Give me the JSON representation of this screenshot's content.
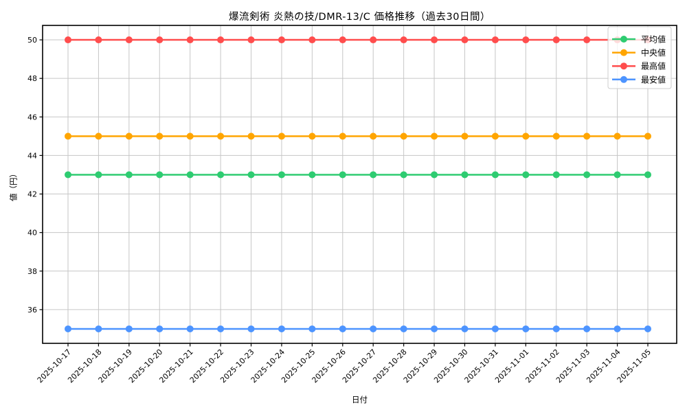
{
  "chart_data": {
    "type": "line",
    "title": "爆流剣術 炎熱の技/DMR-13/C 価格推移（過去30日間）",
    "xlabel": "日付",
    "ylabel": "値（円）",
    "x": [
      "2025-10-17",
      "2025-10-18",
      "2025-10-19",
      "2025-10-20",
      "2025-10-21",
      "2025-10-22",
      "2025-10-23",
      "2025-10-24",
      "2025-10-25",
      "2025-10-26",
      "2025-10-27",
      "2025-10-28",
      "2025-10-29",
      "2025-10-30",
      "2025-10-31",
      "2025-11-01",
      "2025-11-02",
      "2025-11-03",
      "2025-11-04",
      "2025-11-05"
    ],
    "series": [
      {
        "name": "平均値",
        "color": "#2ECC71",
        "values": [
          43,
          43,
          43,
          43,
          43,
          43,
          43,
          43,
          43,
          43,
          43,
          43,
          43,
          43,
          43,
          43,
          43,
          43,
          43,
          43
        ]
      },
      {
        "name": "中央値",
        "color": "#FFA500",
        "values": [
          45,
          45,
          45,
          45,
          45,
          45,
          45,
          45,
          45,
          45,
          45,
          45,
          45,
          45,
          45,
          45,
          45,
          45,
          45,
          45
        ]
      },
      {
        "name": "最高値",
        "color": "#FF4D4D",
        "values": [
          50,
          50,
          50,
          50,
          50,
          50,
          50,
          50,
          50,
          50,
          50,
          50,
          50,
          50,
          50,
          50,
          50,
          50,
          50,
          50
        ]
      },
      {
        "name": "最安値",
        "color": "#4D94FF",
        "values": [
          35,
          35,
          35,
          35,
          35,
          35,
          35,
          35,
          35,
          35,
          35,
          35,
          35,
          35,
          35,
          35,
          35,
          35,
          35,
          35
        ]
      }
    ],
    "yticks": [
      36,
      38,
      40,
      42,
      44,
      46,
      48,
      50
    ],
    "ylim": [
      34.25,
      50.75
    ],
    "grid": true,
    "legend_position": "upper right",
    "styles": {
      "grid_color": "#c6c6c6",
      "spine_color": "#000000",
      "tick_label_color": "#000000",
      "legend_border_color": "#cccccc",
      "legend_bg": "rgba(255,255,255,0.8)"
    }
  }
}
